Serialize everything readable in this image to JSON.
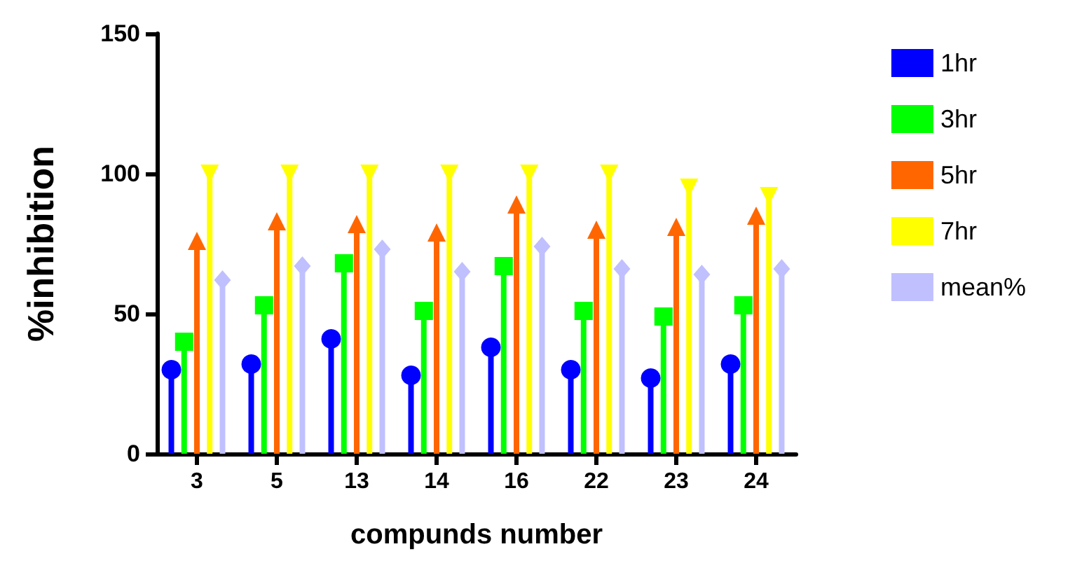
{
  "chart_data": {
    "type": "lollipop",
    "xlabel": "compunds number",
    "ylabel": "%inhibition",
    "categories": [
      "3",
      "5",
      "13",
      "14",
      "16",
      "22",
      "23",
      "24"
    ],
    "ylim": [
      0,
      150
    ],
    "yticks": [
      0,
      50,
      100,
      150
    ],
    "grid": false,
    "legend": "right",
    "series": [
      {
        "name": "1hr",
        "color": "#0000ff",
        "marker": "circle",
        "values": [
          30,
          32,
          41,
          28,
          38,
          30,
          27,
          32
        ]
      },
      {
        "name": "3hr",
        "color": "#00ff00",
        "marker": "square",
        "values": [
          40,
          53,
          68,
          51,
          67,
          51,
          49,
          53
        ]
      },
      {
        "name": "5hr",
        "color": "#ff6600",
        "marker": "triangle",
        "values": [
          76,
          83,
          82,
          79,
          89,
          80,
          81,
          85
        ]
      },
      {
        "name": "7hr",
        "color": "#ffff00",
        "marker": "triangle-down",
        "values": [
          100,
          100,
          100,
          100,
          100,
          100,
          95,
          92
        ]
      },
      {
        "name": "mean%",
        "color": "#c0c0ff",
        "marker": "diamond",
        "values": [
          62,
          67,
          73,
          65,
          74,
          66,
          64,
          66
        ]
      }
    ]
  }
}
